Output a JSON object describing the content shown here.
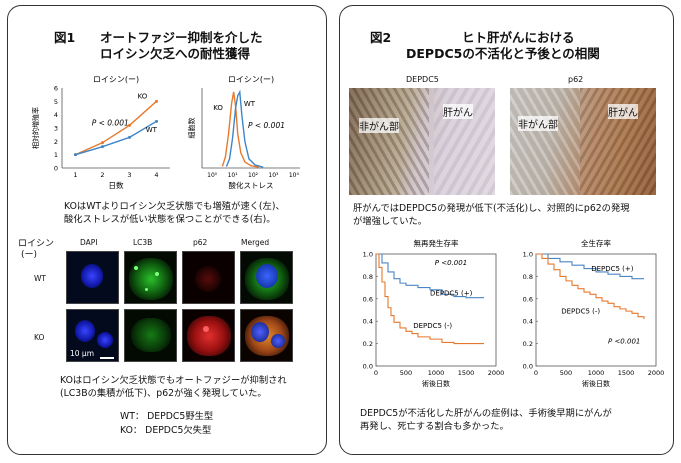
{
  "fig1": {
    "num": "図1",
    "title1": "オートファジー抑制を介した",
    "title2": "ロイシン欠乏への耐性獲得",
    "growth_chart": {
      "title": "ロイシン(ー)",
      "ylabel": "相対的増殖率",
      "xlabel": "日数",
      "pval": "P < 0.001",
      "ko_label": "KO",
      "wt_label": "WT"
    },
    "stress_chart": {
      "title": "ロイシン(ー)",
      "ylabel": "細胞数",
      "xlabel": "酸化ストレス",
      "pval": "P < 0.001",
      "ko_label": "KO",
      "wt_label": "WT"
    },
    "caption1a": "KOはWTよりロイシン欠乏状態でも増殖が速く(左)、",
    "caption1b": "酸化ストレスが低い状態を保つことができる(右)。",
    "micro": {
      "condition": "ロイシン",
      "condition2": "(ー)",
      "columns": [
        "DAPI",
        "LC3B",
        "p62",
        "Merged"
      ],
      "rows": [
        "WT",
        "KO"
      ],
      "scale": "10 μm"
    },
    "caption2a": "KOはロイシン欠乏状態でもオートファジーが抑制され",
    "caption2b": "(LC3Bの集積が低下)、p62が強く発現していた。",
    "legend_wt": "WT： DEPDC5野生型",
    "legend_ko": "KO： DEPDC5欠失型"
  },
  "fig2": {
    "num": "図2",
    "title1": "ヒト肝がんにおける",
    "title2": "DEPDC5の不活化と予後との相関",
    "ihc_left_label": "DEPDC5",
    "ihc_right_label": "p62",
    "nontumor": "非がん部",
    "tumor": "肝がん",
    "caption1a": "肝がんではDEPDC5の発現が低下(不活化)し、対照的にp62の発現",
    "caption1b": "が増強していた。",
    "km_left": {
      "title": "無再発生存率",
      "pval": "P <0.001",
      "pos": "DEPDC5 (+)",
      "neg": "DEPDC5 (-)",
      "xlabel": "術後日数"
    },
    "km_right": {
      "title": "全生存率",
      "pval": "P <0.001",
      "pos": "DEPDC5 (+)",
      "neg": "DEPDC5 (-)",
      "xlabel": "術後日数"
    },
    "caption2a": "DEPDC5が不活化した肝がんの症例は、手術後早期にがんが",
    "caption2b": "再発し、死亡する割合も多かった。"
  },
  "colors": {
    "ko": "#e8792c",
    "wt": "#3e86c8",
    "pos": "#4a86c4",
    "neg": "#e8792c"
  },
  "chart_data": [
    {
      "type": "line",
      "title": "ロイシン(ー)",
      "xlabel": "日数",
      "ylabel": "相対的増殖率",
      "x": [
        1,
        2,
        3,
        4
      ],
      "xlim": [
        0.5,
        4.5
      ],
      "ylim": [
        0,
        6
      ],
      "yticks": [
        0,
        1,
        2,
        3,
        4,
        5,
        6
      ],
      "series": [
        {
          "name": "KO",
          "values": [
            1.0,
            1.9,
            3.2,
            5.0
          ]
        },
        {
          "name": "WT",
          "values": [
            1.0,
            1.6,
            2.3,
            3.5
          ]
        }
      ]
    },
    {
      "type": "line",
      "title": "ロイシン(ー)",
      "xlabel": "酸化ストレス",
      "ylabel": "細胞数",
      "x_scale": "log",
      "xticks": [
        "10⁰",
        "10¹",
        "10²",
        "10³",
        "10⁴"
      ],
      "series": [
        {
          "name": "KO",
          "x": [
            0.5,
            0.65,
            0.8,
            0.95,
            1.05,
            1.15,
            1.25,
            1.4,
            1.6,
            1.9,
            2.3
          ],
          "values": [
            0.02,
            0.15,
            0.45,
            0.85,
            1.0,
            0.8,
            0.45,
            0.2,
            0.08,
            0.03,
            0.01
          ]
        },
        {
          "name": "WT",
          "x": [
            0.7,
            0.85,
            1.0,
            1.15,
            1.25,
            1.35,
            1.45,
            1.6,
            1.8,
            2.1,
            2.5
          ],
          "values": [
            0.02,
            0.12,
            0.4,
            0.8,
            0.95,
            1.0,
            0.7,
            0.35,
            0.12,
            0.04,
            0.01
          ]
        }
      ]
    },
    {
      "type": "line",
      "title": "無再発生存率",
      "xlabel": "術後日数",
      "xlim": [
        0,
        2000
      ],
      "ylim": [
        0,
        1.0
      ],
      "xticks": [
        0,
        500,
        1000,
        1500,
        2000
      ],
      "yticks": [
        0,
        0.2,
        0.4,
        0.6,
        0.8,
        1.0
      ],
      "series": [
        {
          "name": "DEPDC5 (+)",
          "x": [
            0,
            100,
            200,
            300,
            400,
            500,
            700,
            900,
            1100,
            1300,
            1500,
            1700,
            1800
          ],
          "values": [
            1.0,
            0.92,
            0.84,
            0.78,
            0.74,
            0.72,
            0.7,
            0.68,
            0.64,
            0.62,
            0.61,
            0.61,
            0.61
          ]
        },
        {
          "name": "DEPDC5 (-)",
          "x": [
            0,
            50,
            100,
            150,
            200,
            250,
            300,
            400,
            500,
            600,
            700,
            900,
            1100,
            1300,
            1500,
            1800
          ],
          "values": [
            1.0,
            0.88,
            0.75,
            0.62,
            0.52,
            0.45,
            0.39,
            0.34,
            0.31,
            0.29,
            0.26,
            0.24,
            0.21,
            0.2,
            0.2,
            0.2
          ]
        }
      ]
    },
    {
      "type": "line",
      "title": "全生存率",
      "xlabel": "術後日数",
      "xlim": [
        0,
        2000
      ],
      "ylim": [
        0,
        1.0
      ],
      "xticks": [
        0,
        500,
        1000,
        1500,
        2000
      ],
      "yticks": [
        0,
        0.2,
        0.4,
        0.6,
        0.8,
        1.0
      ],
      "series": [
        {
          "name": "DEPDC5 (+)",
          "x": [
            0,
            200,
            400,
            600,
            800,
            1000,
            1200,
            1400,
            1600,
            1800
          ],
          "values": [
            1.0,
            0.96,
            0.93,
            0.9,
            0.87,
            0.84,
            0.82,
            0.8,
            0.78,
            0.78
          ]
        },
        {
          "name": "DEPDC5 (-)",
          "x": [
            0,
            100,
            200,
            300,
            400,
            500,
            600,
            700,
            800,
            900,
            1000,
            1100,
            1200,
            1300,
            1400,
            1500,
            1600,
            1700,
            1800
          ],
          "values": [
            1.0,
            0.96,
            0.91,
            0.86,
            0.8,
            0.76,
            0.72,
            0.69,
            0.66,
            0.64,
            0.61,
            0.58,
            0.56,
            0.53,
            0.51,
            0.49,
            0.47,
            0.44,
            0.42
          ]
        }
      ]
    }
  ]
}
